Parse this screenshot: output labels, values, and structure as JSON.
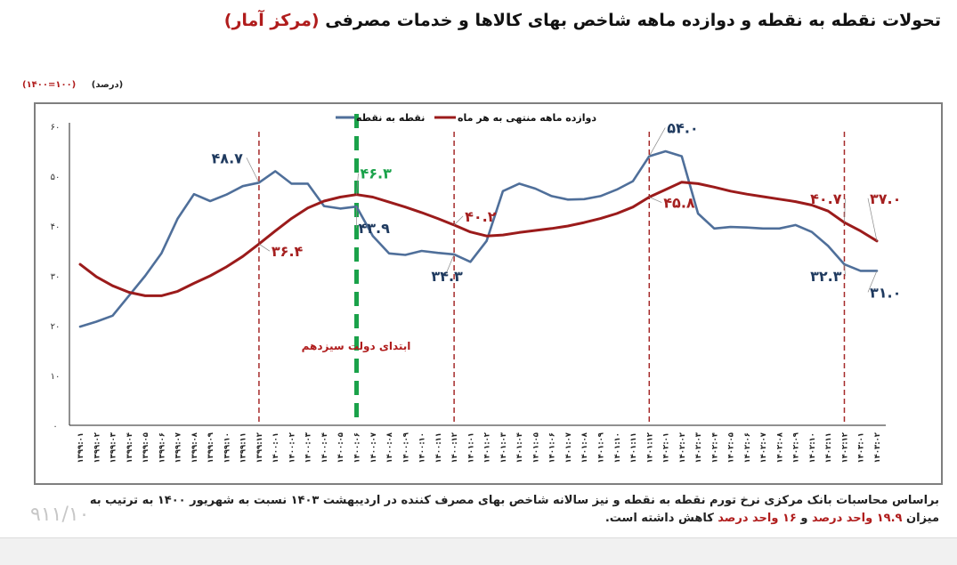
{
  "title": {
    "main": "تحولات نقطه به نقطه و دوازده ماهه شاخص بهای کالاها و خدمات مصرفی",
    "source": "(مرکز آمار)"
  },
  "units": {
    "base": "(۱۴۰۰=۱۰۰)",
    "percent": "(درصد)"
  },
  "legend": {
    "point_to_point": "نقطه به نقطه",
    "twelve_month": "دوازده ماهه منتهی به هر ماه"
  },
  "annotation": {
    "government_start": "ابتدای دولت سیزدهم"
  },
  "footer": {
    "line1": "براساس محاسبات بانک مرکزی نرخ تورم نقطه به نقطه و نیز سالانه شاخص بهای مصرف کننده در اردیبهشت ۱۴۰۳ نسبت به شهریور ۱۴۰۰ به ترتیب به میزان",
    "red1": "۱۹.۹ واحد درصد",
    "and": " و ",
    "red2": "۱۶ واحد درصد",
    "tail": " کاهش داشته است."
  },
  "page_number": "۹۱۱/۱۰",
  "colors": {
    "point_to_point": "#4f6f9a",
    "twelve_month": "#9b1b1b",
    "government_line": "#1aa24a",
    "marker_line": "#a52a2a",
    "label_blue": "#1f3a5f",
    "label_red": "#a52020",
    "label_green": "#1aa24a"
  },
  "chart_data": {
    "type": "line",
    "title": "تحولات نقطه به نقطه و دوازده ماهه شاخص بهای کالاها و خدمات مصرفی (مرکز آمار)",
    "xlabel": "",
    "ylabel": "(درصد)",
    "ylim": [
      0,
      60
    ],
    "yticks": [
      "۰",
      "۱۰",
      "۲۰",
      "۳۰",
      "۴۰",
      "۵۰",
      "۶۰"
    ],
    "ytick_values": [
      0,
      10,
      20,
      30,
      40,
      50,
      60
    ],
    "grid": false,
    "legend_position": "top-center",
    "categories": [
      "۱۳۹۹:۰۱",
      "۱۳۹۹:۰۲",
      "۱۳۹۹:۰۳",
      "۱۳۹۹:۰۴",
      "۱۳۹۹:۰۵",
      "۱۳۹۹:۰۶",
      "۱۳۹۹:۰۷",
      "۱۳۹۹:۰۸",
      "۱۳۹۹:۰۹",
      "۱۳۹۹:۱۰",
      "۱۳۹۹:۱۱",
      "۱۳۹۹:۱۲",
      "۱۴۰۰:۰۱",
      "۱۴۰۰:۰۲",
      "۱۴۰۰:۰۳",
      "۱۴۰۰:۰۴",
      "۱۴۰۰:۰۵",
      "۱۴۰۰:۰۶",
      "۱۴۰۰:۰۷",
      "۱۴۰۰:۰۸",
      "۱۴۰۰:۰۹",
      "۱۴۰۰:۱۰",
      "۱۴۰۰:۱۱",
      "۱۴۰۰:۱۲",
      "۱۴۰۱:۰۱",
      "۱۴۰۱:۰۲",
      "۱۴۰۱:۰۳",
      "۱۴۰۱:۰۴",
      "۱۴۰۱:۰۵",
      "۱۴۰۱:۰۶",
      "۱۴۰۱:۰۷",
      "۱۴۰۱:۰۸",
      "۱۴۰۱:۰۹",
      "۱۴۰۱:۱۰",
      "۱۴۰۱:۱۱",
      "۱۴۰۱:۱۲",
      "۱۴۰۲:۰۱",
      "۱۴۰۲:۰۲",
      "۱۴۰۲:۰۳",
      "۱۴۰۲:۰۴",
      "۱۴۰۲:۰۵",
      "۱۴۰۲:۰۶",
      "۱۴۰۲:۰۷",
      "۱۴۰۲:۰۸",
      "۱۴۰۲:۰۹",
      "۱۴۰۲:۱۰",
      "۱۴۰۲:۱۱",
      "۱۴۰۲:۱۲",
      "۱۴۰۳:۰۱",
      "۱۴۰۳:۰۲"
    ],
    "series": [
      {
        "name": "نقطه به نقطه",
        "color": "#4f6f9a",
        "values": [
          19.8,
          20.8,
          22.0,
          26.0,
          30.0,
          34.5,
          41.5,
          46.4,
          45.0,
          46.3,
          48.0,
          48.7,
          51.0,
          48.5,
          48.5,
          44.0,
          43.5,
          43.9,
          38.0,
          34.5,
          34.2,
          35.0,
          34.6,
          34.3,
          32.8,
          37.0,
          47.0,
          48.5,
          47.5,
          46.0,
          45.3,
          45.4,
          46.0,
          47.3,
          49.0,
          54.0,
          55.0,
          54.0,
          42.5,
          39.5,
          39.8,
          39.7,
          39.5,
          39.5,
          40.2,
          38.8,
          36.0,
          32.3,
          31.0,
          31.0
        ]
      },
      {
        "name": "دوازده ماهه منتهی به هر ماه",
        "color": "#9b1b1b",
        "values": [
          32.3,
          29.8,
          28.0,
          26.7,
          26.0,
          26.0,
          26.9,
          28.5,
          30.0,
          31.8,
          33.9,
          36.4,
          39.0,
          41.5,
          43.6,
          45.0,
          45.8,
          46.3,
          45.8,
          44.8,
          43.8,
          42.7,
          41.5,
          40.2,
          38.8,
          38.0,
          38.2,
          38.7,
          39.1,
          39.5,
          40.0,
          40.7,
          41.5,
          42.5,
          43.8,
          45.8,
          47.3,
          48.8,
          48.5,
          47.8,
          47.0,
          46.4,
          45.9,
          45.4,
          44.9,
          44.2,
          43.0,
          40.7,
          39.0,
          37.0
        ]
      }
    ],
    "vertical_markers": [
      {
        "category": "۱۳۹۹:۱۲",
        "style": "dashed",
        "color": "#a52a2a"
      },
      {
        "category": "۱۴۰۰:۰۶",
        "style": "dashed-thick",
        "color": "#1aa24a",
        "label": "ابتدای دولت سیزدهم"
      },
      {
        "category": "۱۴۰۰:۱۲",
        "style": "dashed",
        "color": "#a52a2a"
      },
      {
        "category": "۱۴۰۱:۱۲",
        "style": "dashed",
        "color": "#a52a2a"
      },
      {
        "category": "۱۴۰۲:۱۲",
        "style": "dashed",
        "color": "#a52a2a"
      }
    ],
    "data_labels": [
      {
        "text": "۴۸.۷",
        "series": "نقطه به نقطه",
        "category": "۱۳۹۹:۱۲",
        "value": 48.7
      },
      {
        "text": "۳۶.۴",
        "series": "دوازده ماهه منتهی به هر ماه",
        "category": "۱۳۹۹:۱۲",
        "value": 36.4
      },
      {
        "text": "۴۶.۳",
        "series": "دوازده ماهه منتهی به هر ماه",
        "category": "۱۴۰۰:۰۶",
        "value": 46.3
      },
      {
        "text": "۴۳.۹",
        "series": "نقطه به نقطه",
        "category": "۱۴۰۰:۰۶",
        "value": 43.9
      },
      {
        "text": "۴۰.۲",
        "series": "دوازده ماهه منتهی به هر ماه",
        "category": "۱۴۰۰:۱۲",
        "value": 40.2
      },
      {
        "text": "۳۴.۳",
        "series": "نقطه به نقطه",
        "category": "۱۴۰۰:۱۲",
        "value": 34.3
      },
      {
        "text": "۵۴.۰",
        "series": "نقطه به نقطه",
        "category": "۱۴۰۱:۱۲",
        "value": 54.0
      },
      {
        "text": "۴۵.۸",
        "series": "دوازده ماهه منتهی به هر ماه",
        "category": "۱۴۰۱:۱۲",
        "value": 45.8
      },
      {
        "text": "۴۰.۷",
        "series": "دوازده ماهه منتهی به هر ماه",
        "category": "۱۴۰۲:۱۲",
        "value": 40.7
      },
      {
        "text": "۳۲.۳",
        "series": "نقطه به نقطه",
        "category": "۱۴۰۲:۱۲",
        "value": 32.3
      },
      {
        "text": "۳۷.۰",
        "series": "دوازده ماهه منتهی به هر ماه",
        "category": "۱۴۰۳:۰۲",
        "value": 37.0
      },
      {
        "text": "۳۱.۰",
        "series": "نقطه به نقطه",
        "category": "۱۴۰۳:۰۲",
        "value": 31.0
      }
    ]
  }
}
